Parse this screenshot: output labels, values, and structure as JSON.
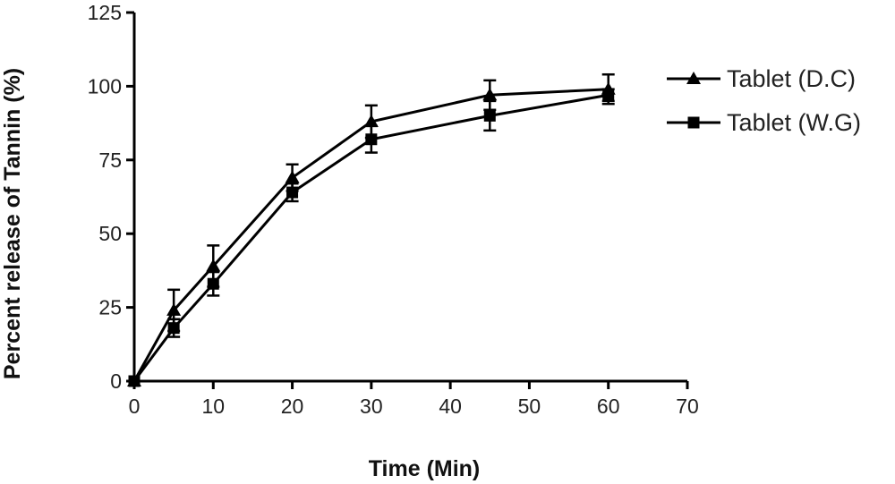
{
  "chart_data": {
    "type": "line",
    "title": "",
    "xlabel": "Time (Min)",
    "ylabel": "Percent release of Tannin (%)",
    "xlim": [
      0,
      70
    ],
    "ylim": [
      0,
      125
    ],
    "x_ticks": [
      0,
      10,
      20,
      30,
      40,
      50,
      60,
      70
    ],
    "y_ticks": [
      0,
      25,
      50,
      75,
      100,
      125
    ],
    "x_tick_labels": [
      "0",
      "10",
      "20",
      "30",
      "40",
      "50",
      "60",
      "70"
    ],
    "y_tick_labels": [
      "0",
      "25",
      "50",
      "75",
      "100",
      "125"
    ],
    "grid": false,
    "legend_position": "top-right",
    "series": [
      {
        "name": "Tablet (D.C)",
        "marker": "triangle",
        "color": "#000000",
        "x": [
          0,
          5,
          10,
          20,
          30,
          45,
          60
        ],
        "y": [
          0,
          24,
          39,
          69,
          88,
          97,
          99
        ],
        "error": [
          0,
          7,
          7,
          4.5,
          5.5,
          5,
          5
        ]
      },
      {
        "name": "Tablet (W.G)",
        "marker": "square",
        "color": "#000000",
        "x": [
          0,
          5,
          10,
          20,
          30,
          45,
          60
        ],
        "y": [
          0,
          18,
          33,
          64,
          82,
          90,
          97
        ],
        "error": [
          0,
          3,
          4,
          3,
          4.5,
          5,
          2
        ]
      }
    ]
  }
}
